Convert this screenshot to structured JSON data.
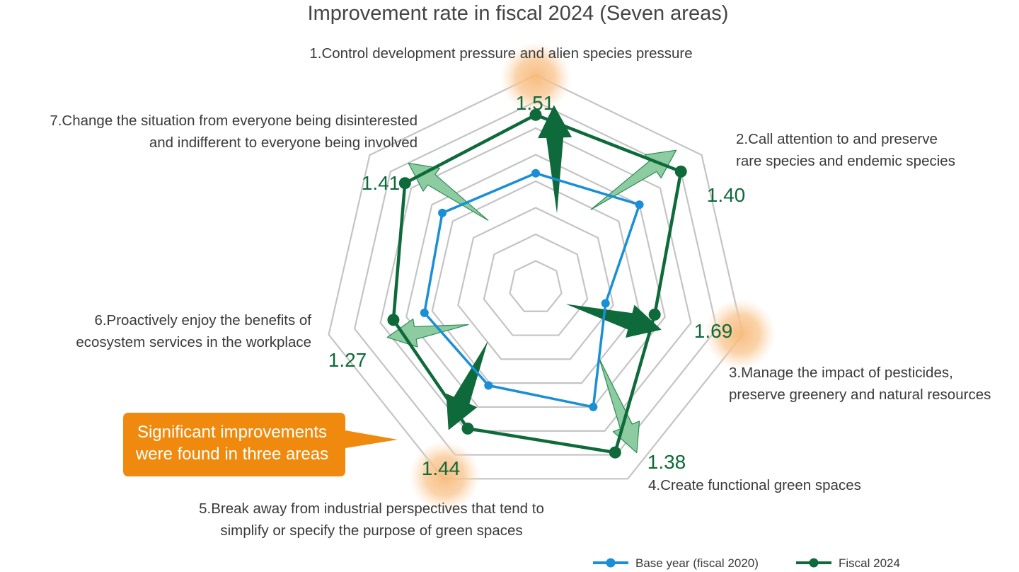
{
  "chart_data": {
    "type": "radar",
    "title": "Improvement rate in fiscal 2024 (Seven areas)",
    "categories": [
      [
        "1.Control development pressure and alien species pressure"
      ],
      [
        "2.Call attention to and preserve",
        "rare species and endemic species"
      ],
      [
        "3.Manage the impact of pesticides,",
        "preserve greenery and natural resources"
      ],
      [
        "4.Create functional green spaces"
      ],
      [
        "5.Break away from industrial perspectives that tend to",
        "simplify or specify the purpose of green spaces"
      ],
      [
        "6.Proactively enjoy the benefits of",
        "ecosystem services in the workplace"
      ],
      [
        "7.Change the situation from everyone being disinterested",
        "and indifferent to everyone being involved"
      ]
    ],
    "ring_count": 8,
    "max_rings": 8,
    "series": [
      {
        "name": "Base year (fiscal 2020)",
        "color": "#1a8fd5",
        "values": [
          4.3,
          5.0,
          2.7,
          5.0,
          4.1,
          4.3,
          4.5
        ]
      },
      {
        "name": "Fiscal 2024",
        "color": "#0e6a3a",
        "values": [
          6.5,
          7.0,
          4.6,
          6.9,
          5.9,
          5.5,
          6.3
        ]
      }
    ],
    "improvement_rates": [
      "1.51",
      "1.40",
      "1.69",
      "1.38",
      "1.44",
      "1.27",
      "1.41"
    ],
    "significant_areas": [
      1,
      3,
      5
    ],
    "callout": [
      "Significant improvements",
      "were found in three areas"
    ],
    "legend_position": "bottom-right"
  },
  "colors": {
    "grid": "#c4c4c4",
    "highlight": "#f7b978",
    "callout": "#ef8a0e",
    "arrow_dark": "#0e6a3a",
    "arrow_light": "#8ccca0"
  }
}
